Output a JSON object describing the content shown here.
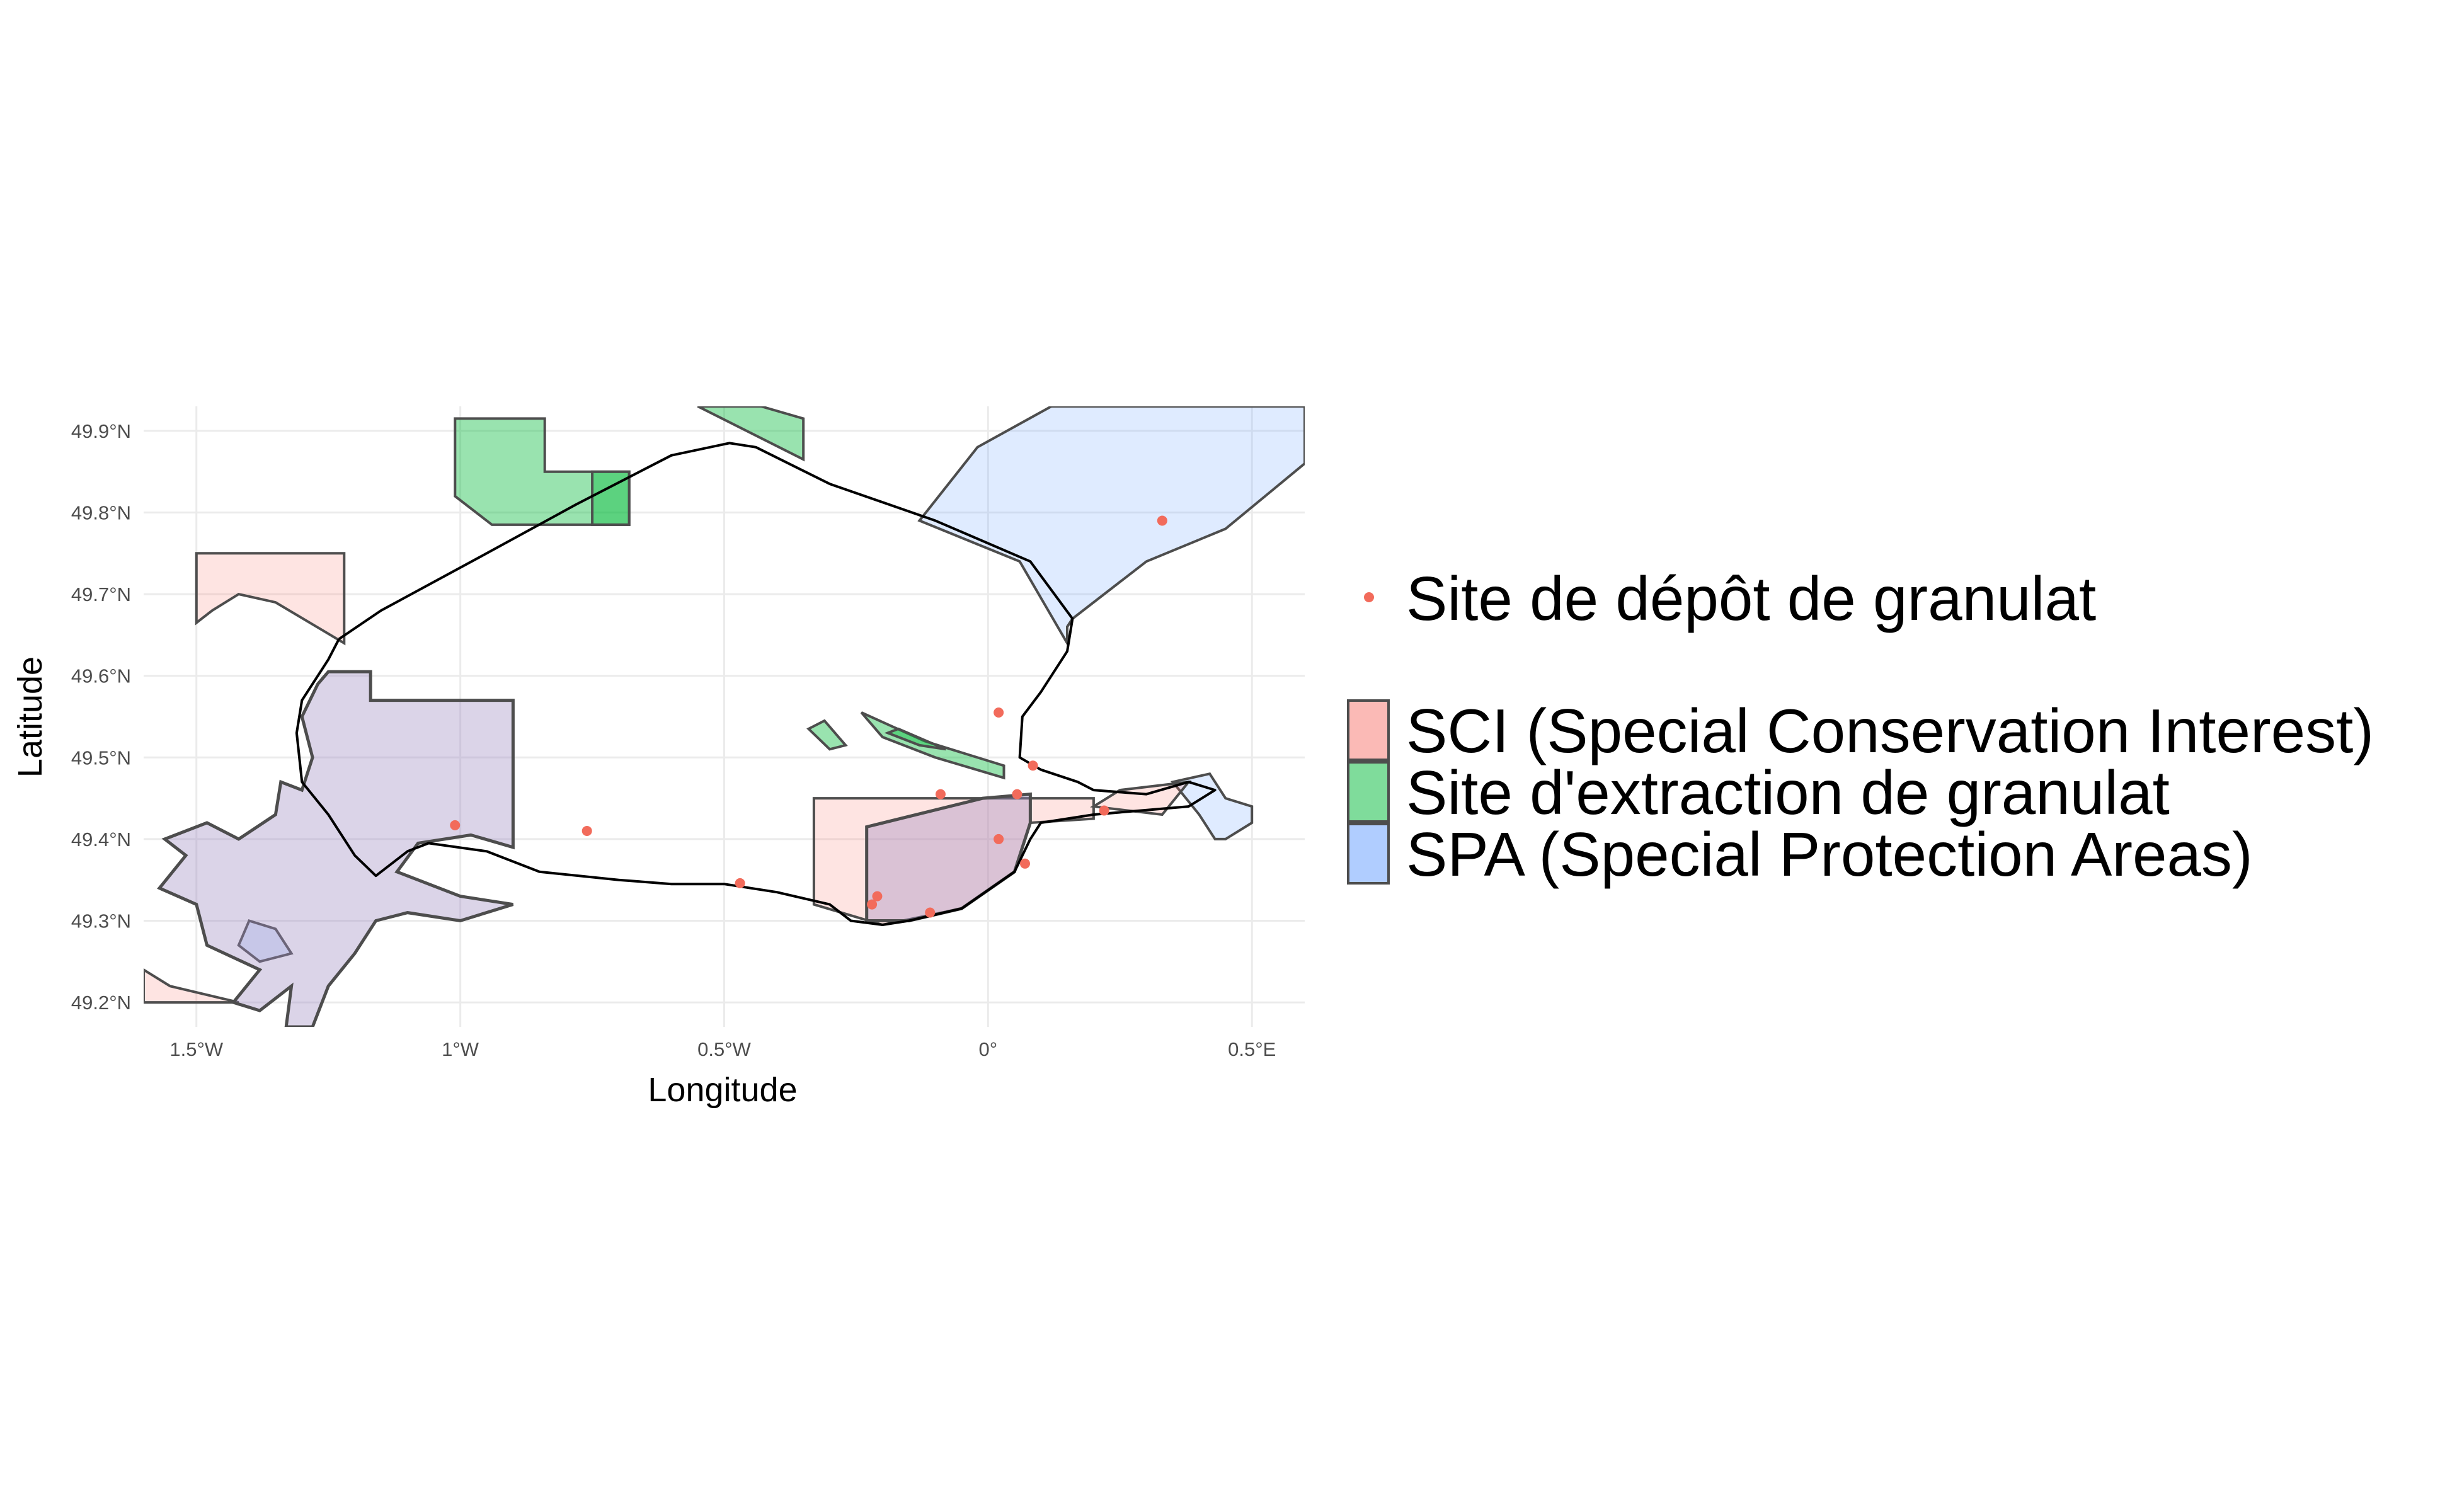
{
  "map": {
    "x_label": "Longitude",
    "y_label": "Latitude",
    "lon_range": [
      -1.6,
      0.6
    ],
    "lat_range": [
      49.17,
      49.93
    ],
    "lon_ticks": [
      {
        "value": -1.5,
        "label": "1.5°W"
      },
      {
        "value": -1.0,
        "label": "1°W"
      },
      {
        "value": -0.5,
        "label": "0.5°W"
      },
      {
        "value": 0.0,
        "label": "0°"
      },
      {
        "value": 0.5,
        "label": "0.5°E"
      }
    ],
    "lat_ticks": [
      {
        "value": 49.9,
        "label": "49.9°N"
      },
      {
        "value": 49.8,
        "label": "49.8°N"
      },
      {
        "value": 49.7,
        "label": "49.7°N"
      },
      {
        "value": 49.6,
        "label": "49.6°N"
      },
      {
        "value": 49.5,
        "label": "49.5°N"
      },
      {
        "value": 49.4,
        "label": "49.4°N"
      },
      {
        "value": 49.3,
        "label": "49.3°N"
      },
      {
        "value": 49.2,
        "label": "49.2°N"
      }
    ],
    "grid": true
  },
  "legend": {
    "placement": "right",
    "point_label": "Site de dépôt de granulat",
    "area_items": [
      {
        "label": "SCI (Special Conservation Interest)",
        "color": "#f8766d"
      },
      {
        "label": "Site d'extraction de granulat",
        "color": "#00ba38"
      },
      {
        "label": "SPA (Special Protection Areas)",
        "color": "#619cff"
      }
    ]
  },
  "colors": {
    "point": "#f26b5b",
    "sci_fill": "#f8766d",
    "extraction_fill": "#00ba38",
    "spa_fill": "#619cff",
    "outline": "#4d4d4d",
    "boundary": "#000000",
    "grid": "#ebebeb"
  },
  "deposit_sites": [
    {
      "lon": -1.01,
      "lat": 49.417
    },
    {
      "lon": -0.76,
      "lat": 49.41
    },
    {
      "lon": -0.47,
      "lat": 49.346
    },
    {
      "lon": -0.22,
      "lat": 49.32
    },
    {
      "lon": -0.21,
      "lat": 49.33
    },
    {
      "lon": -0.11,
      "lat": 49.31
    },
    {
      "lon": -0.09,
      "lat": 49.455
    },
    {
      "lon": 0.02,
      "lat": 49.555
    },
    {
      "lon": 0.02,
      "lat": 49.4
    },
    {
      "lon": 0.055,
      "lat": 49.455
    },
    {
      "lon": 0.07,
      "lat": 49.37
    },
    {
      "lon": 0.085,
      "lat": 49.49
    },
    {
      "lon": 0.22,
      "lat": 49.435
    },
    {
      "lon": 0.33,
      "lat": 49.79
    }
  ],
  "zones": {
    "extraction": [
      [
        [
          -1.01,
          49.915
        ],
        [
          -0.84,
          49.915
        ],
        [
          -0.84,
          49.85
        ],
        [
          -0.68,
          49.85
        ],
        [
          -0.68,
          49.785
        ],
        [
          -0.94,
          49.785
        ],
        [
          -1.01,
          49.82
        ]
      ],
      [
        [
          -0.75,
          49.85
        ],
        [
          -0.68,
          49.85
        ],
        [
          -0.68,
          49.785
        ],
        [
          -0.75,
          49.785
        ]
      ],
      [
        [
          -0.55,
          49.93
        ],
        [
          -0.43,
          49.93
        ],
        [
          -0.35,
          49.915
        ],
        [
          -0.35,
          49.865
        ]
      ],
      [
        [
          -0.34,
          49.535
        ],
        [
          -0.31,
          49.545
        ],
        [
          -0.27,
          49.515
        ],
        [
          -0.3,
          49.51
        ]
      ],
      [
        [
          -0.24,
          49.555
        ],
        [
          -0.12,
          49.52
        ],
        [
          0.03,
          49.49
        ],
        [
          0.03,
          49.475
        ],
        [
          -0.1,
          49.5
        ],
        [
          -0.2,
          49.525
        ]
      ],
      [
        [
          -0.19,
          49.53
        ],
        [
          -0.13,
          49.515
        ],
        [
          -0.08,
          49.51
        ],
        [
          -0.17,
          49.535
        ]
      ]
    ],
    "sci": [
      [
        [
          -1.5,
          49.75
        ],
        [
          -1.22,
          49.75
        ],
        [
          -1.22,
          49.64
        ],
        [
          -1.35,
          49.69
        ],
        [
          -1.42,
          49.7
        ],
        [
          -1.47,
          49.68
        ],
        [
          -1.5,
          49.665
        ]
      ],
      [
        [
          -0.33,
          49.45
        ],
        [
          0.2,
          49.45
        ],
        [
          0.2,
          49.425
        ],
        [
          0.08,
          49.42
        ],
        [
          0.05,
          49.36
        ],
        [
          -0.05,
          49.315
        ],
        [
          -0.2,
          49.295
        ],
        [
          -0.33,
          49.32
        ]
      ],
      [
        [
          0.25,
          49.46
        ],
        [
          0.38,
          49.47
        ],
        [
          0.33,
          49.43
        ],
        [
          0.2,
          49.44
        ]
      ],
      [
        [
          -1.6,
          49.24
        ],
        [
          -1.55,
          49.22
        ],
        [
          -1.42,
          49.2
        ],
        [
          -1.6,
          49.2
        ]
      ]
    ],
    "spa": [
      [
        [
          -0.13,
          49.79
        ],
        [
          -0.02,
          49.88
        ],
        [
          0.12,
          49.93
        ],
        [
          0.6,
          49.93
        ],
        [
          0.6,
          49.86
        ],
        [
          0.45,
          49.78
        ],
        [
          0.3,
          49.74
        ],
        [
          0.16,
          49.67
        ],
        [
          0.15,
          49.66
        ],
        [
          0.15,
          49.64
        ],
        [
          0.06,
          49.74
        ]
      ],
      [
        [
          0.35,
          49.47
        ],
        [
          0.42,
          49.48
        ],
        [
          0.45,
          49.45
        ],
        [
          0.5,
          49.44
        ],
        [
          0.5,
          49.42
        ],
        [
          0.45,
          49.4
        ],
        [
          0.43,
          49.4
        ],
        [
          0.4,
          49.43
        ]
      ],
      [
        [
          -1.4,
          49.3
        ],
        [
          -1.35,
          49.29
        ],
        [
          -1.32,
          49.26
        ],
        [
          -1.38,
          49.25
        ],
        [
          -1.42,
          49.27
        ]
      ]
    ],
    "sci_spa_overlap": [
      [
        [
          -1.25,
          49.605
        ],
        [
          -1.17,
          49.605
        ],
        [
          -1.17,
          49.57
        ],
        [
          -0.9,
          49.57
        ],
        [
          -0.9,
          49.39
        ],
        [
          -0.98,
          49.405
        ],
        [
          -1.08,
          49.395
        ],
        [
          -1.12,
          49.36
        ],
        [
          -1.0,
          49.33
        ],
        [
          -0.9,
          49.32
        ],
        [
          -1.0,
          49.3
        ],
        [
          -1.1,
          49.31
        ],
        [
          -1.16,
          49.3
        ],
        [
          -1.2,
          49.26
        ],
        [
          -1.25,
          49.22
        ],
        [
          -1.28,
          49.17
        ],
        [
          -1.33,
          49.17
        ],
        [
          -1.32,
          49.22
        ],
        [
          -1.38,
          49.19
        ],
        [
          -1.43,
          49.2
        ],
        [
          -1.38,
          49.24
        ],
        [
          -1.48,
          49.27
        ],
        [
          -1.5,
          49.32
        ],
        [
          -1.57,
          49.34
        ],
        [
          -1.52,
          49.38
        ],
        [
          -1.56,
          49.4
        ],
        [
          -1.48,
          49.42
        ],
        [
          -1.42,
          49.4
        ],
        [
          -1.35,
          49.43
        ],
        [
          -1.34,
          49.47
        ],
        [
          -1.3,
          49.46
        ],
        [
          -1.28,
          49.5
        ],
        [
          -1.3,
          49.55
        ],
        [
          -1.27,
          49.59
        ]
      ],
      [
        [
          -0.23,
          49.415
        ],
        [
          -0.01,
          49.45
        ],
        [
          0.08,
          49.455
        ],
        [
          0.08,
          49.42
        ],
        [
          0.05,
          49.36
        ],
        [
          -0.05,
          49.315
        ],
        [
          -0.15,
          49.3
        ],
        [
          -0.23,
          49.3
        ]
      ]
    ],
    "boundary": [
      [
        [
          -1.23,
          49.645
        ],
        [
          -1.15,
          49.68
        ],
        [
          -0.95,
          49.75
        ],
        [
          -0.78,
          49.81
        ],
        [
          -0.6,
          49.87
        ],
        [
          -0.49,
          49.885
        ],
        [
          -0.44,
          49.88
        ],
        [
          -0.3,
          49.835
        ],
        [
          -0.1,
          49.79
        ],
        [
          0.08,
          49.74
        ],
        [
          0.16,
          49.67
        ],
        [
          0.15,
          49.63
        ],
        [
          0.1,
          49.58
        ],
        [
          0.065,
          49.55
        ],
        [
          0.06,
          49.5
        ],
        [
          0.1,
          49.485
        ],
        [
          0.17,
          49.47
        ],
        [
          0.2,
          49.46
        ],
        [
          0.3,
          49.455
        ],
        [
          0.38,
          49.47
        ],
        [
          0.43,
          49.46
        ],
        [
          0.38,
          49.44
        ],
        [
          0.2,
          49.43
        ],
        [
          0.1,
          49.42
        ],
        [
          0.08,
          49.4
        ],
        [
          0.05,
          49.36
        ],
        [
          -0.05,
          49.315
        ],
        [
          -0.15,
          49.3
        ],
        [
          -0.2,
          49.295
        ],
        [
          -0.26,
          49.3
        ],
        [
          -0.3,
          49.32
        ],
        [
          -0.4,
          49.335
        ],
        [
          -0.5,
          49.345
        ],
        [
          -0.6,
          49.345
        ],
        [
          -0.7,
          49.35
        ],
        [
          -0.85,
          49.36
        ],
        [
          -0.95,
          49.385
        ],
        [
          -1.06,
          49.395
        ],
        [
          -1.1,
          49.385
        ],
        [
          -1.16,
          49.355
        ],
        [
          -1.2,
          49.38
        ],
        [
          -1.25,
          49.43
        ],
        [
          -1.3,
          49.47
        ],
        [
          -1.31,
          49.53
        ],
        [
          -1.3,
          49.57
        ],
        [
          -1.27,
          49.6
        ],
        [
          -1.25,
          49.62
        ],
        [
          -1.23,
          49.645
        ]
      ]
    ]
  }
}
